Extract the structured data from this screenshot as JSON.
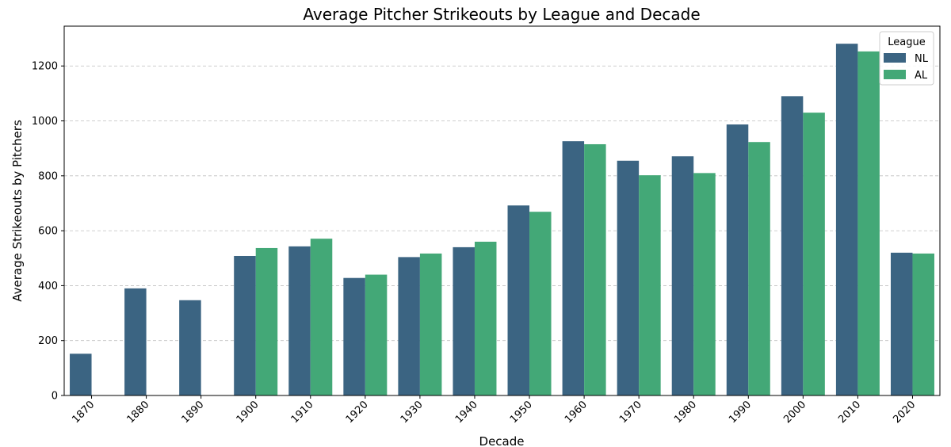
{
  "chart_data": {
    "type": "bar",
    "title": "Average Pitcher Strikeouts by League and Decade",
    "xlabel": "Decade",
    "ylabel": "Average Strikeouts by Pitchers",
    "categories": [
      "1870",
      "1880",
      "1890",
      "1900",
      "1910",
      "1920",
      "1930",
      "1940",
      "1950",
      "1960",
      "1970",
      "1980",
      "1990",
      "2000",
      "2010",
      "2020"
    ],
    "series": [
      {
        "name": "NL",
        "color": "#3b6482",
        "values": [
          152,
          390,
          347,
          508,
          543,
          428,
          504,
          540,
          692,
          926,
          855,
          871,
          987,
          1090,
          1281,
          520
        ]
      },
      {
        "name": "AL",
        "color": "#43a877",
        "values": [
          null,
          null,
          null,
          537,
          571,
          440,
          517,
          560,
          669,
          915,
          802,
          810,
          923,
          1030,
          1253,
          517
        ]
      }
    ],
    "ylim": [
      0,
      1345
    ],
    "yticks": [
      0,
      200,
      400,
      600,
      800,
      1000,
      1200
    ],
    "grid": "y",
    "legend": {
      "title": "League",
      "placement": "top-right"
    }
  }
}
